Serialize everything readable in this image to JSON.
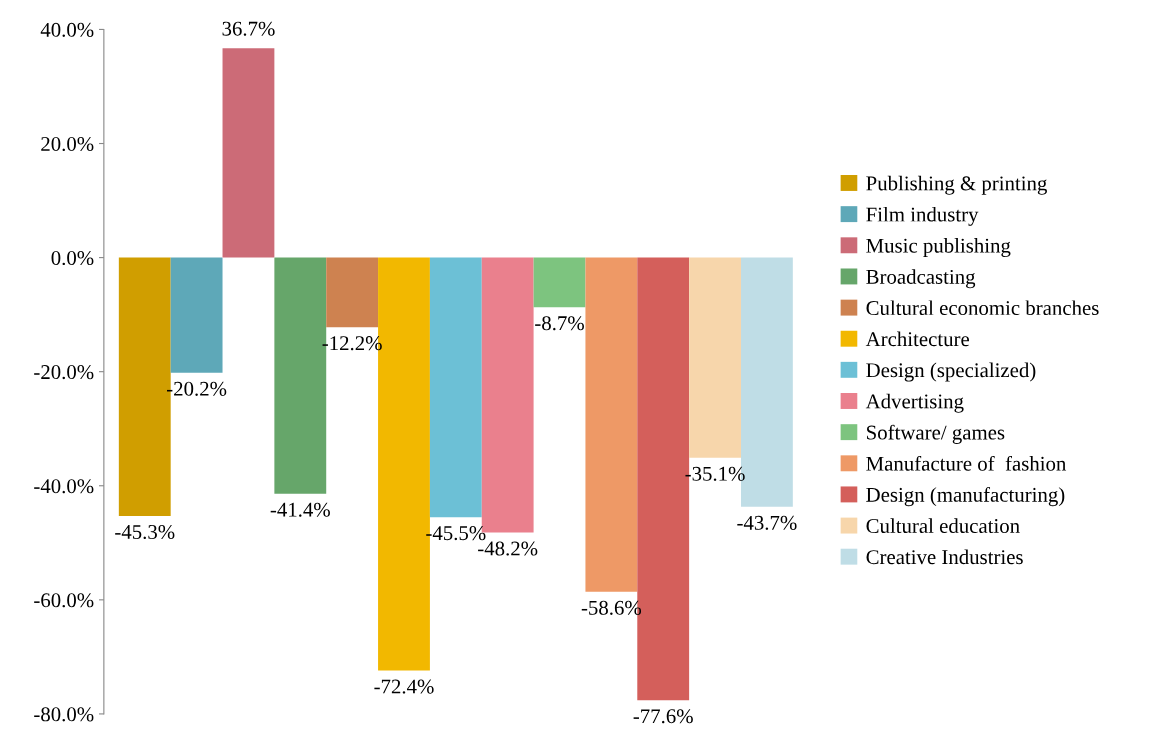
{
  "chart_data": {
    "type": "bar",
    "categories": [
      null
    ],
    "series": [
      {
        "name": "Publishing & printing",
        "color": "#d09e00",
        "values": [
          -45.3
        ],
        "value_labels": [
          "-45.3%"
        ]
      },
      {
        "name": "Film industry",
        "color": "#5ea8b8",
        "values": [
          -20.2
        ],
        "value_labels": [
          "-20.2%"
        ]
      },
      {
        "name": "Music publishing",
        "color": "#cc6b77",
        "values": [
          36.7
        ],
        "value_labels": [
          "36.7%"
        ]
      },
      {
        "name": "Broadcasting",
        "color": "#66a66a",
        "values": [
          -41.4
        ],
        "value_labels": [
          "-41.4%"
        ]
      },
      {
        "name": "Cultural economic branches",
        "color": "#ce8250",
        "values": [
          -12.2
        ],
        "value_labels": [
          "-12.2%"
        ]
      },
      {
        "name": "Architecture",
        "color": "#f2b800",
        "values": [
          -72.4
        ],
        "value_labels": [
          "-72.4%"
        ]
      },
      {
        "name": "Design (specialized)",
        "color": "#6cc0d6",
        "values": [
          -45.5
        ],
        "value_labels": [
          "-45.5%"
        ]
      },
      {
        "name": "Advertising",
        "color": "#ea808d",
        "values": [
          -48.2
        ],
        "value_labels": [
          "-48.2%"
        ]
      },
      {
        "name": "Software/ games",
        "color": "#7dc47f",
        "values": [
          -8.7
        ],
        "value_labels": [
          "-8.7%"
        ]
      },
      {
        "name": "Manufacture of  fashion",
        "color": "#ee9966",
        "values": [
          -58.6
        ],
        "value_labels": [
          "-58.6%"
        ]
      },
      {
        "name": "Design (manufacturing)",
        "color": "#d45f5b",
        "values": [
          -77.6
        ],
        "value_labels": [
          "-77.6%"
        ]
      },
      {
        "name": "Cultural education",
        "color": "#f7d6ab",
        "values": [
          -35.1
        ],
        "value_labels": [
          "-35.1%"
        ]
      },
      {
        "name": "Creative Industries",
        "color": "#bfdde6",
        "values": [
          -43.7
        ],
        "value_labels": [
          "-43.7%"
        ]
      }
    ],
    "ylim": [
      -80,
      40
    ],
    "yticks": [
      {
        "value": 40,
        "label": "40.0%"
      },
      {
        "value": 20,
        "label": "20.0%"
      },
      {
        "value": 0,
        "label": "0.0%"
      },
      {
        "value": -20,
        "label": "-20.0%"
      },
      {
        "value": -40,
        "label": "-40.0%"
      },
      {
        "value": -60,
        "label": "-60.0%"
      },
      {
        "value": -80,
        "label": "-80.0%"
      }
    ],
    "grid": false,
    "legend": "right"
  }
}
